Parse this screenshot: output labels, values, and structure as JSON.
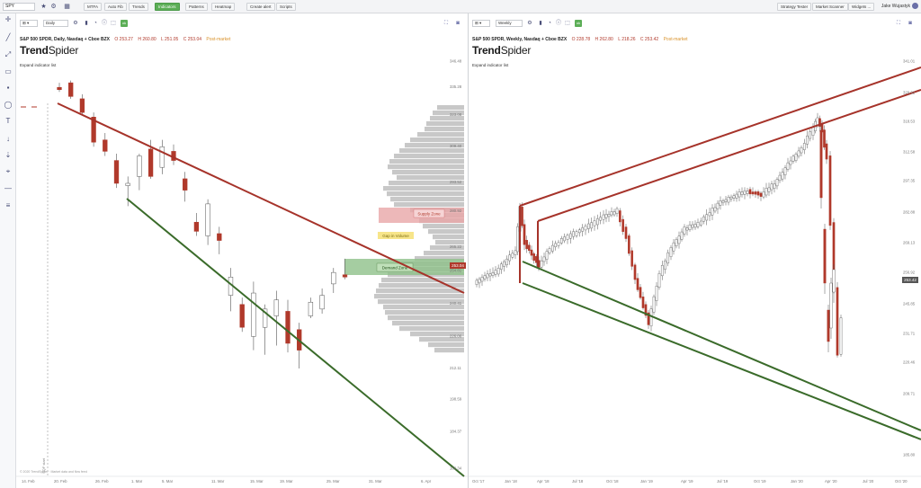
{
  "topbar": {
    "symbol": "SPY",
    "buttons": [
      {
        "id": "mtfa",
        "label": "MTFA",
        "active": false
      },
      {
        "id": "autofib",
        "label": "Auto Fib",
        "active": false
      },
      {
        "id": "trends",
        "label": "Trends",
        "active": false
      },
      {
        "id": "indicators",
        "label": "Indicators",
        "active": true
      },
      {
        "id": "patterns",
        "label": "Patterns",
        "active": false
      },
      {
        "id": "heatmap",
        "label": "Heatmap",
        "active": false
      },
      {
        "id": "createalert",
        "label": "Create alert",
        "active": false
      },
      {
        "id": "scripts",
        "label": "Scripts",
        "active": false
      }
    ],
    "right_buttons": [
      "Strategy Tester",
      "Market Scanner",
      "Widgets ..."
    ],
    "user": "Jake Wujastyk"
  },
  "colors": {
    "bear": "#b0392b",
    "bull": "#ffffff",
    "support": "#3a6b2a",
    "resistance": "#a6332a",
    "volume_profile": "#c8c8c8",
    "accent": "#5cae57"
  },
  "left_pane": {
    "timeframe": "Daily",
    "title": "S&P 500 SPDR, Daily, Nasdaq + Cboe BZX",
    "ohlc": {
      "o": "O 253.27",
      "h": "H 260.80",
      "l": "L 251.05",
      "c": "C 253.04"
    },
    "session": "Post-market",
    "logo_a": "Trend",
    "logo_b": "Spider",
    "expand": "Expand indicator list",
    "price_tag": "253.04",
    "zones": {
      "supply": "Supply Zone",
      "gap": "Gap in Volume",
      "demand": "Demand Zone"
    },
    "vertical_label": "SQF start",
    "copyright": "© 2020 TrendSpider · Market data and flow feed"
  },
  "right_pane": {
    "timeframe": "Weekly",
    "title": "S&P 500 SPDR, Weekly, Nasdaq + Cboe BZX",
    "ohlc": {
      "o": "O 228.78",
      "h": "H 262.80",
      "l": "L 218.26",
      "c": "C 253.42"
    },
    "session": "Post-market",
    "logo_a": "Trend",
    "logo_b": "Spider",
    "expand": "Expand indicator list",
    "price_tag": "253.42"
  },
  "chart_data": [
    {
      "type": "candlestick",
      "title": "S&P 500 SPDR, Daily, Nasdaq + Cboe BZX",
      "y_ticks": [
        "346.48",
        "335.28",
        "323.08",
        "309.40",
        "293.52",
        "280.92",
        "265.22",
        "254.81",
        "240.41",
        "226.06",
        "212.11",
        "198.59",
        "184.37",
        "168.34"
      ],
      "x_ticks": [
        "14. Feb",
        "20. Feb",
        "26. Feb",
        "1. Mar",
        "5. Mar",
        "11. Mar",
        "15. Mar",
        "19. Mar",
        "25. Mar",
        "31. Mar",
        "6. Apr"
      ],
      "candles": [
        {
          "o": 335,
          "h": 337,
          "l": 333,
          "c": 334,
          "d": "bear"
        },
        {
          "o": 337,
          "h": 338,
          "l": 330,
          "c": 331,
          "d": "bear"
        },
        {
          "o": 330,
          "h": 332,
          "l": 323,
          "c": 324,
          "d": "bear"
        },
        {
          "o": 322,
          "h": 324,
          "l": 309,
          "c": 311,
          "d": "bear"
        },
        {
          "o": 312,
          "h": 315,
          "l": 305,
          "c": 307,
          "d": "bear"
        },
        {
          "o": 303,
          "h": 306,
          "l": 291,
          "c": 293,
          "d": "bear"
        },
        {
          "o": 293,
          "h": 296,
          "l": 283,
          "c": 292,
          "d": "bull"
        },
        {
          "o": 296,
          "h": 306,
          "l": 290,
          "c": 305,
          "d": "bull"
        },
        {
          "o": 308,
          "h": 312,
          "l": 295,
          "c": 296,
          "d": "bear"
        },
        {
          "o": 300,
          "h": 312,
          "l": 297,
          "c": 309,
          "d": "bull"
        },
        {
          "o": 307,
          "h": 310,
          "l": 301,
          "c": 303,
          "d": "bear"
        },
        {
          "o": 295,
          "h": 298,
          "l": 285,
          "c": 290,
          "d": "bear"
        },
        {
          "o": 276,
          "h": 280,
          "l": 270,
          "c": 272,
          "d": "bear"
        },
        {
          "o": 270,
          "h": 286,
          "l": 266,
          "c": 284,
          "d": "bull"
        },
        {
          "o": 271,
          "h": 274,
          "l": 262,
          "c": 268,
          "d": "bear"
        },
        {
          "o": 244,
          "h": 256,
          "l": 237,
          "c": 252,
          "d": "bull"
        },
        {
          "o": 240,
          "h": 243,
          "l": 228,
          "c": 230,
          "d": "bear"
        },
        {
          "o": 226,
          "h": 250,
          "l": 220,
          "c": 245,
          "d": "bull"
        },
        {
          "o": 230,
          "h": 240,
          "l": 218,
          "c": 238,
          "d": "bull"
        },
        {
          "o": 235,
          "h": 246,
          "l": 222,
          "c": 242,
          "d": "bull"
        },
        {
          "o": 237,
          "h": 242,
          "l": 219,
          "c": 223,
          "d": "bear"
        },
        {
          "o": 220,
          "h": 232,
          "l": 212,
          "c": 229,
          "d": "bear"
        },
        {
          "o": 235,
          "h": 243,
          "l": 234,
          "c": 241,
          "d": "bull"
        },
        {
          "o": 238,
          "h": 247,
          "l": 236,
          "c": 244,
          "d": "bull"
        },
        {
          "o": 254,
          "h": 256,
          "l": 245,
          "c": 249,
          "d": "bull"
        },
        {
          "o": 252,
          "h": 260,
          "l": 251,
          "c": 253,
          "d": "bear"
        }
      ],
      "current_price": 253.04
    },
    {
      "type": "candlestick",
      "title": "S&P 500 SPDR, Weekly, Nasdaq + Cboe BZX",
      "y_ticks": [
        "341.01",
        "329.92",
        "318.53",
        "312.58",
        "297.35",
        "282.88",
        "269.13",
        "256.92",
        "245.85",
        "231.71",
        "220.46",
        "209.71",
        "185.80"
      ],
      "x_ticks": [
        "Oct '17",
        "Jan '18",
        "Apr '18",
        "Jul '18",
        "Oct '18",
        "Jan '19",
        "Apr '19",
        "Jul '19",
        "Oct '19",
        "Jan '20",
        "Apr '20",
        "Jul '20",
        "Oct '20"
      ],
      "current_price": 253.42
    }
  ]
}
